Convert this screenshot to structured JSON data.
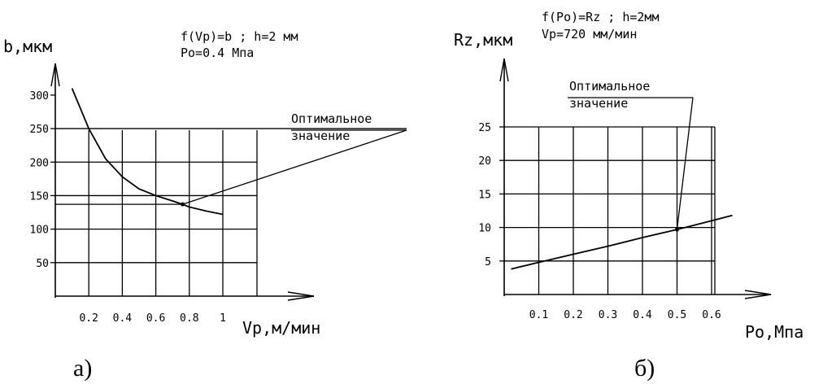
{
  "chart_data": [
    {
      "type": "line",
      "caption": "а)",
      "title_lines": [
        "f(Vp)=b ; h=2 мм",
        "Po=0.4 Мпа"
      ],
      "xlabel": "Vp,м/мин",
      "ylabel": "b,мкм",
      "xlim": [
        0,
        1
      ],
      "ylim": [
        0,
        300
      ],
      "x_ticks": [
        "0.2",
        "0.4",
        "0.6",
        "0.8",
        "1"
      ],
      "x_tick_values": [
        0.2,
        0.4,
        0.6,
        0.8,
        1.0
      ],
      "y_ticks": [
        "50",
        "100",
        "150",
        "200",
        "250",
        "300"
      ],
      "y_tick_values": [
        50,
        100,
        150,
        200,
        250,
        300
      ],
      "grid": true,
      "series": [
        {
          "x": [
            0.1,
            0.2,
            0.3,
            0.4,
            0.5,
            0.6,
            0.7,
            0.76,
            0.8,
            0.9,
            1.0
          ],
          "y": [
            310,
            250,
            205,
            178,
            160,
            150,
            142,
            137,
            133,
            127,
            122
          ]
        }
      ],
      "optimum": {
        "x": 0.76,
        "y": 137
      },
      "annotation": [
        "Оптимальное",
        "значение"
      ]
    },
    {
      "type": "line",
      "caption": "б)",
      "title_lines": [
        "f(Po)=Rz ; h=2мм",
        "Vp=720 мм/мин"
      ],
      "xlabel": "Po,Мпа",
      "ylabel": "Rz,мкм",
      "xlim": [
        0,
        0.6
      ],
      "ylim": [
        0,
        25
      ],
      "x_ticks": [
        "0.1",
        "0.2",
        "0.3",
        "0.4",
        "0.5",
        "0.6"
      ],
      "x_tick_values": [
        0.1,
        0.2,
        0.3,
        0.4,
        0.5,
        0.6
      ],
      "y_ticks": [
        "5",
        "10",
        "15",
        "20",
        "25"
      ],
      "y_tick_values": [
        5,
        10,
        15,
        20,
        25
      ],
      "grid": true,
      "series": [
        {
          "x": [
            0.02,
            0.1,
            0.2,
            0.3,
            0.4,
            0.5,
            0.6,
            0.66
          ],
          "y": [
            3.8,
            4.8,
            6.0,
            7.2,
            8.5,
            9.7,
            11.0,
            11.8
          ]
        }
      ],
      "optimum": {
        "x": 0.5,
        "y": 9.7
      },
      "annotation": [
        "Оптимальное",
        "значение"
      ]
    }
  ]
}
